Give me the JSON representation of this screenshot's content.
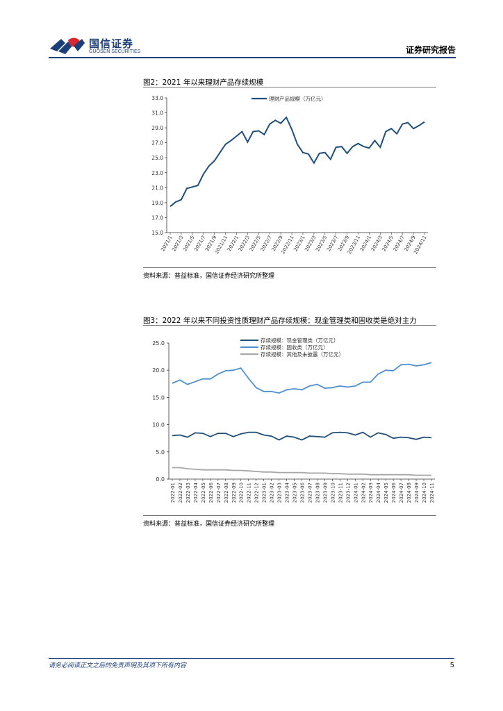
{
  "header": {
    "logo_cn": "国信证券",
    "logo_en": "GUOSEN SECURITIES",
    "report_type": "证券研究报告"
  },
  "figure2": {
    "title": "图2：2021 年以来理财产品存续规模",
    "source": "资料来源：普益标准，国信证券经济研究所整理"
  },
  "figure3": {
    "title": "图3：2022 年以来不同投资性质理财产品存续规模：现金管理类和固收类是绝对主力",
    "source": "资料来源：普益标准，国信证券经济研究所整理"
  },
  "footer": {
    "disclaimer": "请务必阅读正文之后的免责声明及其项下所有内容",
    "page_number": "5"
  },
  "colors": {
    "brand_blue": "#1c3f7a",
    "logo_red": "#d7282f",
    "series_dark": "#1f4e79",
    "series_light": "#4f8fcf",
    "series_gray": "#a6a6a6"
  },
  "chart_data": [
    {
      "type": "line",
      "legend_position": "top",
      "grid": false,
      "ylim": [
        15.0,
        33.0
      ],
      "yticks": [
        "15.0",
        "17.0",
        "19.0",
        "21.0",
        "23.0",
        "25.0",
        "27.0",
        "29.0",
        "31.0",
        "33.0"
      ],
      "xtick_labels": [
        "2021/1",
        "2021/3",
        "2021/5",
        "2021/7",
        "2021/9",
        "2021/11",
        "2022/1",
        "2022/3",
        "2022/5",
        "2022/7",
        "2022/9",
        "2022/11",
        "2023/1",
        "2023/3",
        "2023/5",
        "2023/7",
        "2023/9",
        "2023/11",
        "2024/1",
        "2024/3",
        "2024/5",
        "2024/7",
        "2024/9",
        "2024/11"
      ],
      "series": [
        {
          "name": "理财产品规模（万亿元）",
          "color": "#1f4e79",
          "values": [
            18.5,
            19.1,
            19.4,
            20.9,
            21.1,
            21.3,
            22.8,
            23.9,
            24.6,
            25.7,
            26.8,
            27.3,
            27.9,
            28.5,
            27.1,
            28.5,
            28.6,
            28.1,
            29.5,
            30.0,
            29.6,
            30.4,
            28.8,
            26.8,
            25.7,
            25.5,
            24.3,
            25.6,
            25.7,
            24.8,
            26.4,
            26.5,
            25.6,
            26.5,
            26.9,
            26.5,
            26.3,
            27.3,
            26.4,
            28.5,
            28.9,
            28.2,
            29.5,
            29.7,
            28.9,
            29.3,
            29.8
          ]
        }
      ]
    },
    {
      "type": "line",
      "legend_position": "top",
      "grid": false,
      "ylim": [
        0.0,
        25.0
      ],
      "yticks": [
        "0.0",
        "5.0",
        "10.0",
        "15.0",
        "20.0",
        "25.0"
      ],
      "categories": [
        "2022-01",
        "2022-02",
        "2022-03",
        "2022-04",
        "2022-05",
        "2022-06",
        "2022-07",
        "2022-08",
        "2022-09",
        "2022-10",
        "2022-11",
        "2022-12",
        "2023-01",
        "2023-02",
        "2023-03",
        "2023-04",
        "2023-05",
        "2023-06",
        "2023-07",
        "2023-08",
        "2023-09",
        "2023-10",
        "2023-11",
        "2023-12",
        "2024-01",
        "2024-02",
        "2024-03",
        "2024-04",
        "2024-05",
        "2024-06",
        "2024-07",
        "2024-08",
        "2024-09",
        "2024-10",
        "2024-11"
      ],
      "series": [
        {
          "name": "存续规模：现金管理类（万亿元）",
          "color": "#1f4e79",
          "values": [
            8.0,
            8.1,
            7.7,
            8.5,
            8.4,
            7.8,
            8.4,
            8.4,
            7.8,
            8.3,
            8.6,
            8.6,
            8.1,
            7.9,
            7.2,
            7.9,
            7.7,
            7.2,
            7.9,
            7.8,
            7.7,
            8.5,
            8.6,
            8.5,
            8.1,
            8.6,
            7.7,
            8.5,
            8.2,
            7.5,
            7.7,
            7.6,
            7.3,
            7.7,
            7.6
          ]
        },
        {
          "name": "存续规模：固收类（万亿元）",
          "color": "#4f8fcf",
          "values": [
            17.6,
            18.2,
            17.4,
            17.9,
            18.4,
            18.4,
            19.3,
            19.9,
            20.0,
            20.4,
            18.5,
            16.8,
            16.1,
            16.1,
            15.8,
            16.4,
            16.6,
            16.4,
            17.1,
            17.4,
            16.7,
            16.8,
            17.1,
            16.9,
            17.1,
            17.8,
            17.8,
            19.3,
            20.0,
            19.9,
            21.0,
            21.1,
            20.8,
            21.0,
            21.4
          ]
        },
        {
          "name": "存续规模：其他及未披露（万亿元）",
          "color": "#a6a6a6",
          "values": [
            2.1,
            2.1,
            1.9,
            1.8,
            1.7,
            1.7,
            1.7,
            1.7,
            1.6,
            1.6,
            1.5,
            1.4,
            1.3,
            1.3,
            1.2,
            1.2,
            1.2,
            1.2,
            1.1,
            1.1,
            1.1,
            1.0,
            1.0,
            0.9,
            0.9,
            0.9,
            0.8,
            0.8,
            0.8,
            0.8,
            0.8,
            0.8,
            0.7,
            0.7,
            0.7
          ]
        }
      ]
    }
  ]
}
